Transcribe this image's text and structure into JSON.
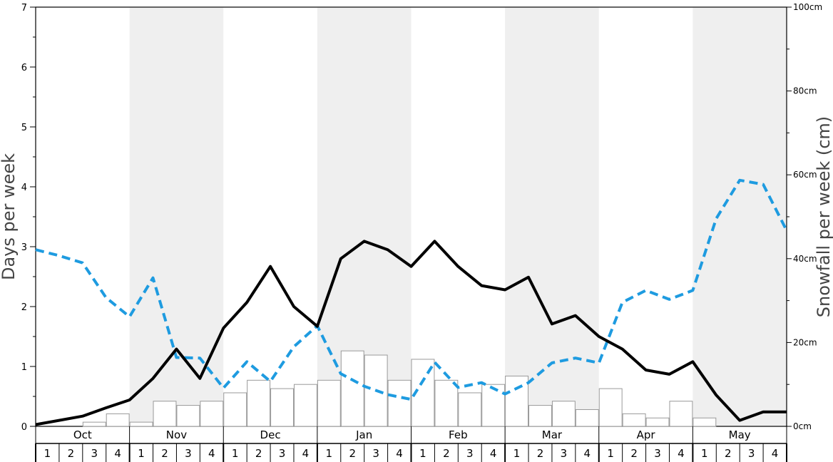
{
  "chart_data": {
    "type": "bar+line",
    "months": [
      "Oct",
      "Nov",
      "Dec",
      "Jan",
      "Feb",
      "Mar",
      "Apr",
      "May"
    ],
    "weeks": [
      "1",
      "2",
      "3",
      "4"
    ],
    "ylabel_left": "Days per week",
    "ylabel_right": "Snowfall per week (cm)",
    "ylim_left": [
      0,
      7
    ],
    "ylim_right": [
      0,
      100
    ],
    "left_ticks": [
      "0",
      "1",
      "2",
      "3",
      "4",
      "5",
      "6",
      "7"
    ],
    "right_ticks": [
      "0cm",
      "20cm",
      "40cm",
      "60cm",
      "80cm",
      "100cm"
    ],
    "shaded_months": [
      "Nov",
      "Jan",
      "Mar",
      "May"
    ],
    "colors": {
      "black_line": "#000000",
      "blue_line": "#1e9be0",
      "bars": "#ffffff",
      "bar_stroke": "#999999",
      "shade": "#efefef"
    },
    "snowfall_bars_cm": [
      0,
      0,
      1,
      3,
      1,
      6,
      5,
      6,
      8,
      11,
      9,
      10,
      11,
      18,
      17,
      11,
      16,
      11,
      8,
      10,
      12,
      5,
      6,
      4,
      9,
      3,
      2,
      6,
      2,
      0,
      0,
      0
    ],
    "black_line_days": [
      0.03,
      0.1,
      0.17,
      0.31,
      0.44,
      0.8,
      1.29,
      0.8,
      1.64,
      2.07,
      2.67,
      2.0,
      1.67,
      2.8,
      3.09,
      2.95,
      2.67,
      3.09,
      2.67,
      2.35,
      2.28,
      2.49,
      1.71,
      1.85,
      1.5,
      1.29,
      0.94,
      0.87,
      1.08,
      0.52,
      0.1,
      0.24,
      0.24
    ],
    "blue_line_days": [
      2.95,
      2.85,
      2.73,
      2.15,
      1.83,
      2.48,
      1.15,
      1.14,
      0.64,
      1.08,
      0.75,
      1.33,
      1.68,
      0.88,
      0.67,
      0.53,
      0.45,
      1.07,
      0.65,
      0.73,
      0.54,
      0.73,
      1.06,
      1.14,
      1.06,
      2.07,
      2.27,
      2.12,
      2.27,
      3.47,
      4.11,
      4.04,
      3.27
    ]
  }
}
